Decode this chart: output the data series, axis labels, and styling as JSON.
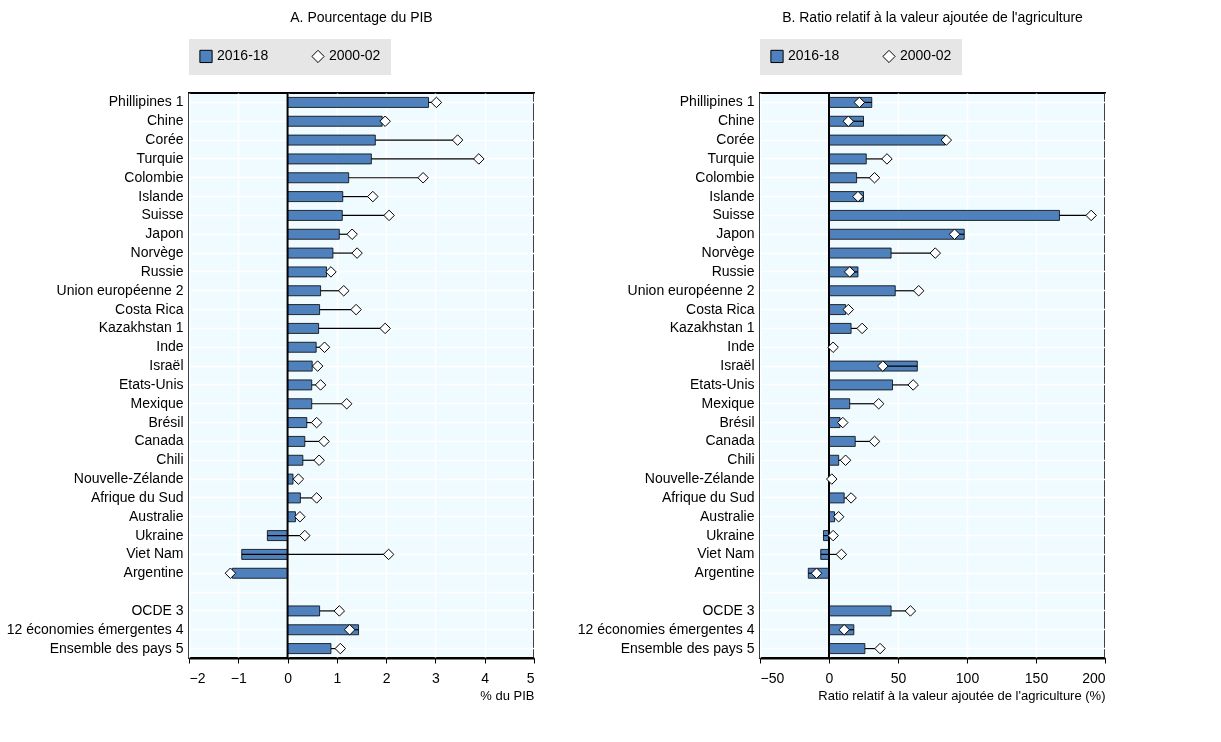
{
  "chart_data": [
    {
      "type": "bar",
      "orientation": "horizontal",
      "title": "A. Pourcentage du PIB",
      "xlabel": "% du PIB",
      "categories": [
        "Phillipines 1",
        "Chine",
        "Corée",
        "Turquie",
        "Colombie",
        "Islande",
        "Suisse",
        "Japon",
        "Norvège",
        "Russie",
        "Union européenne 2",
        "Costa Rica",
        "Kazakhstan 1",
        "Inde",
        "Israël",
        "Etats-Unis",
        "Mexique",
        "Brésil",
        "Canada",
        "Chili",
        "Nouvelle-Zélande",
        "Afrique du Sud",
        "Australie",
        "Ukraine",
        "Viet Nam",
        "Argentine",
        null,
        "OCDE 3",
        "12 économies émergentes 4",
        "Ensemble des pays 5"
      ],
      "series": [
        {
          "name": "2016-18",
          "type": "bar",
          "color": "#4f81bd",
          "values": [
            2.86,
            1.92,
            1.78,
            1.7,
            1.24,
            1.12,
            1.11,
            1.05,
            0.92,
            0.79,
            0.67,
            0.65,
            0.63,
            0.58,
            0.5,
            0.49,
            0.49,
            0.39,
            0.35,
            0.31,
            0.11,
            0.26,
            0.16,
            -0.41,
            -0.93,
            -1.12,
            null,
            0.65,
            1.44,
            0.88
          ]
        },
        {
          "name": "2000-02",
          "type": "scatter",
          "marker": "diamond",
          "color": "#ffffff",
          "values": [
            3.02,
            1.98,
            3.45,
            3.88,
            2.75,
            1.73,
            2.06,
            1.31,
            1.41,
            0.88,
            1.14,
            1.39,
            1.98,
            0.75,
            0.61,
            0.67,
            1.2,
            0.59,
            0.74,
            0.64,
            0.22,
            0.59,
            0.25,
            0.35,
            2.05,
            -1.16,
            null,
            1.05,
            1.26,
            1.07
          ],
          "errors": [
            [
              2.86,
              3.02
            ],
            [
              1.92,
              1.98
            ],
            [
              1.78,
              3.45
            ],
            [
              1.7,
              3.88
            ],
            [
              1.24,
              2.75
            ],
            [
              1.12,
              1.73
            ],
            [
              1.11,
              2.06
            ],
            [
              1.05,
              1.31
            ],
            [
              0.92,
              1.41
            ],
            [
              0.79,
              0.88
            ],
            [
              0.67,
              1.14
            ],
            [
              0.65,
              1.39
            ],
            [
              0.63,
              1.98
            ],
            [
              0.58,
              0.75
            ],
            [
              0.5,
              0.61
            ],
            [
              0.49,
              0.67
            ],
            [
              0.49,
              1.2
            ],
            [
              0.39,
              0.59
            ],
            [
              0.35,
              0.74
            ],
            [
              0.31,
              0.64
            ],
            [
              0.11,
              0.22
            ],
            [
              0.26,
              0.59
            ],
            [
              0.16,
              0.25
            ],
            [
              -0.41,
              0.35
            ],
            [
              -0.93,
              2.05
            ],
            [
              -1.16,
              -1.12
            ],
            null,
            [
              0.65,
              1.05
            ],
            [
              1.26,
              1.44
            ],
            [
              0.88,
              1.07
            ]
          ]
        }
      ],
      "xlim": [
        -2,
        5
      ],
      "xticks": [
        -2,
        -1,
        0,
        1,
        2,
        3,
        4,
        5
      ],
      "ref_lines": [
        {
          "axis": "x",
          "value": 0,
          "color": "#000000"
        }
      ],
      "grid": true,
      "legend": "top"
    },
    {
      "type": "bar",
      "orientation": "horizontal",
      "title": "B. Ratio relatif à la valeur ajoutée de l'agriculture",
      "xlabel": "Ratio relatif à la valeur ajoutée de l'agriculture (%)",
      "categories": [
        "Phillipines 1",
        "Chine",
        "Corée",
        "Turquie",
        "Colombie",
        "Islande",
        "Suisse",
        "Japon",
        "Norvège",
        "Russie",
        "Union européenne 2",
        "Costa Rica",
        "Kazakhstan 1",
        "Inde",
        "Israël",
        "Etats-Unis",
        "Mexique",
        "Brésil",
        "Canada",
        "Chili",
        "Nouvelle-Zélande",
        "Afrique du Sud",
        "Australie",
        "Ukraine",
        "Viet Nam",
        "Argentine",
        null,
        "OCDE 3",
        "12 économies émergentes 4",
        "Ensemble des pays 5"
      ],
      "series": [
        {
          "name": "2016-18",
          "type": "bar",
          "color": "#4f81bd",
          "values": [
            31,
            25,
            84,
            27,
            20,
            25,
            167,
            98,
            45,
            21,
            48,
            12,
            16,
            null,
            64,
            46,
            15,
            8,
            19,
            7,
            null,
            11,
            4,
            -4,
            -6,
            -15,
            null,
            45,
            18,
            26
          ]
        },
        {
          "name": "2000-02",
          "type": "scatter",
          "marker": "diamond",
          "color": "#ffffff",
          "values": [
            22,
            14,
            85,
            42,
            33,
            21,
            190,
            91,
            77,
            15,
            65,
            14,
            24,
            3,
            39,
            61,
            36,
            10,
            33,
            12,
            2,
            16,
            7,
            3,
            9,
            -9,
            null,
            59,
            11,
            37
          ],
          "errors": [
            [
              22,
              31
            ],
            [
              14,
              25
            ],
            null,
            [
              27,
              42
            ],
            [
              20,
              33
            ],
            [
              21,
              25
            ],
            [
              167,
              190
            ],
            [
              91,
              98
            ],
            [
              45,
              77
            ],
            [
              15,
              21
            ],
            [
              48,
              65
            ],
            null,
            [
              16,
              24
            ],
            null,
            [
              39,
              64
            ],
            [
              46,
              61
            ],
            [
              15,
              36
            ],
            null,
            [
              19,
              33
            ],
            [
              7,
              12
            ],
            null,
            [
              11,
              16
            ],
            [
              4,
              7
            ],
            [
              -4,
              3
            ],
            [
              -6,
              9
            ],
            [
              -15,
              -9
            ],
            null,
            [
              45,
              59
            ],
            [
              11,
              18
            ],
            [
              26,
              37
            ]
          ]
        }
      ],
      "xlim": [
        -50,
        200
      ],
      "xticks": [
        -50,
        0,
        50,
        100,
        150,
        200
      ],
      "ref_lines": [
        {
          "axis": "x",
          "value": 0,
          "color": "#000000"
        }
      ],
      "grid": true,
      "legend": "top"
    }
  ]
}
